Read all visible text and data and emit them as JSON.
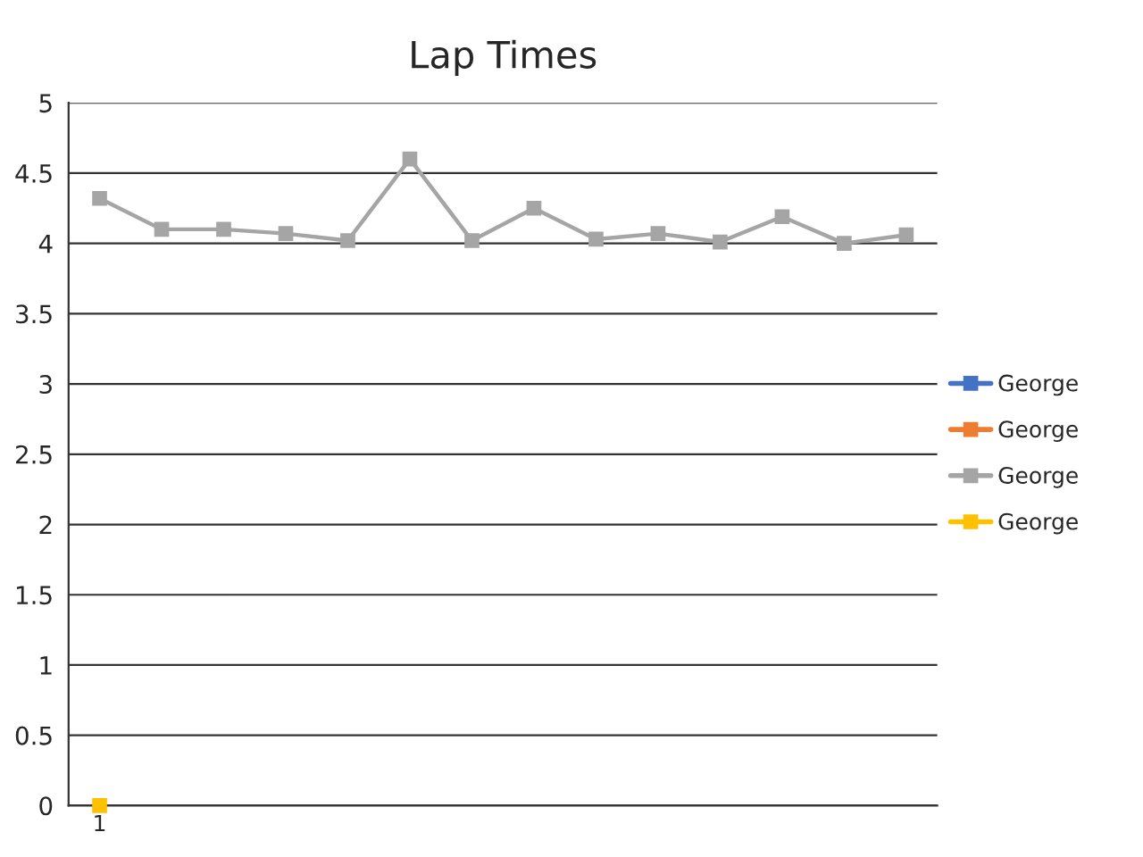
{
  "chart_data": {
    "type": "line",
    "title": "Lap Times",
    "categories": [
      "1",
      null,
      null,
      null,
      null,
      null,
      null,
      null,
      null,
      null,
      null,
      null,
      null,
      null
    ],
    "series": [
      {
        "name": "George",
        "color": "#4472c4",
        "values": [
          null,
          null,
          null,
          null,
          null,
          null,
          null,
          null,
          null,
          null,
          null,
          null,
          null,
          null
        ]
      },
      {
        "name": "George",
        "color": "#ed7d31",
        "values": [
          null,
          null,
          null,
          null,
          null,
          null,
          null,
          null,
          null,
          null,
          null,
          null,
          null,
          null
        ]
      },
      {
        "name": "George",
        "color": "#a5a5a5",
        "values": [
          4.32,
          4.1,
          4.1,
          4.07,
          4.02,
          4.6,
          4.02,
          4.25,
          4.03,
          4.07,
          4.01,
          4.19,
          4.0,
          4.06
        ]
      },
      {
        "name": "George",
        "color": "#ffc000",
        "values": [
          0,
          null,
          null,
          null,
          null,
          null,
          null,
          null,
          null,
          null,
          null,
          null,
          null,
          null
        ]
      }
    ],
    "ylim": [
      0,
      5
    ],
    "yticks": [
      0,
      0.5,
      1,
      1.5,
      2,
      2.5,
      3,
      3.5,
      4,
      4.5,
      5
    ],
    "grid": "y",
    "legend": "right",
    "marker": "square",
    "line_style": "solid"
  }
}
